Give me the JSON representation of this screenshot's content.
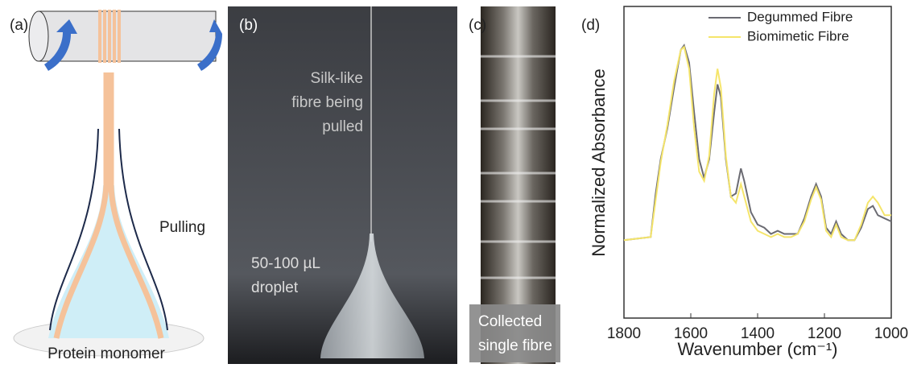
{
  "panels": {
    "a": {
      "label": "(a)",
      "pulling": "Pulling",
      "monomer": "Protein monomer"
    },
    "b": {
      "label": "(b)",
      "fibre_note": [
        "Silk-like",
        "fibre being",
        "pulled"
      ],
      "droplet_note": [
        "50-100 µL",
        "droplet"
      ]
    },
    "c": {
      "label": "(c)",
      "note": [
        "Collected",
        "single fibre"
      ]
    },
    "d": {
      "label": "(d)"
    }
  },
  "chart_data": {
    "type": "line",
    "xlabel": "Wavenumber (cm⁻¹)",
    "ylabel": "Normalized Absorbance",
    "x": [
      1800,
      1720,
      1705,
      1690,
      1670,
      1650,
      1630,
      1620,
      1605,
      1590,
      1575,
      1560,
      1545,
      1530,
      1520,
      1510,
      1495,
      1480,
      1465,
      1450,
      1440,
      1420,
      1400,
      1380,
      1360,
      1340,
      1320,
      1300,
      1280,
      1260,
      1240,
      1225,
      1210,
      1195,
      1180,
      1165,
      1150,
      1130,
      1110,
      1090,
      1070,
      1055,
      1040,
      1020,
      1000
    ],
    "series": [
      {
        "name": "Degummed Fibre",
        "color": "#6b6b72",
        "values": [
          0.25,
          0.26,
          0.4,
          0.51,
          0.61,
          0.74,
          0.86,
          0.875,
          0.82,
          0.66,
          0.51,
          0.45,
          0.51,
          0.66,
          0.75,
          0.71,
          0.51,
          0.39,
          0.4,
          0.48,
          0.44,
          0.34,
          0.3,
          0.29,
          0.27,
          0.28,
          0.27,
          0.27,
          0.27,
          0.32,
          0.39,
          0.43,
          0.39,
          0.29,
          0.27,
          0.31,
          0.27,
          0.25,
          0.25,
          0.29,
          0.35,
          0.36,
          0.33,
          0.32,
          0.31
        ]
      },
      {
        "name": "Biomimetic Fibre",
        "color": "#f5e56b",
        "values": [
          0.25,
          0.26,
          0.38,
          0.5,
          0.62,
          0.76,
          0.86,
          0.87,
          0.8,
          0.61,
          0.47,
          0.44,
          0.52,
          0.72,
          0.8,
          0.74,
          0.52,
          0.39,
          0.37,
          0.43,
          0.39,
          0.31,
          0.28,
          0.27,
          0.26,
          0.27,
          0.26,
          0.26,
          0.27,
          0.31,
          0.38,
          0.42,
          0.38,
          0.28,
          0.26,
          0.3,
          0.26,
          0.25,
          0.25,
          0.3,
          0.37,
          0.39,
          0.37,
          0.33,
          0.33
        ]
      }
    ],
    "xlim": [
      1800,
      1000
    ],
    "xticks": [
      1800,
      1600,
      1400,
      1200,
      1000
    ],
    "ylim": [
      0,
      1
    ],
    "legend": "upper right"
  }
}
